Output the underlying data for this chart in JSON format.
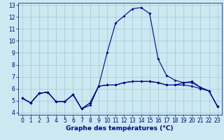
{
  "xlabel": "Graphe des températures (°C)",
  "bg_color": "#cce8f0",
  "line_color": "#00008b",
  "grid_color": "#99ccd9",
  "xlim": [
    -0.5,
    23.5
  ],
  "ylim": [
    3.8,
    13.2
  ],
  "xticks": [
    0,
    1,
    2,
    3,
    4,
    5,
    6,
    7,
    8,
    9,
    10,
    11,
    12,
    13,
    14,
    15,
    16,
    17,
    18,
    19,
    20,
    21,
    22,
    23
  ],
  "yticks": [
    4,
    5,
    6,
    7,
    8,
    9,
    10,
    11,
    12,
    13
  ],
  "line1_x": [
    0,
    1,
    2,
    3,
    4,
    5,
    6,
    7,
    8,
    9,
    10,
    11,
    12,
    13,
    14,
    15,
    16,
    17,
    18,
    19,
    20,
    21,
    22,
    23
  ],
  "line1_y": [
    5.2,
    4.8,
    5.6,
    5.7,
    4.9,
    4.9,
    5.5,
    4.3,
    4.6,
    6.2,
    6.3,
    6.3,
    6.5,
    6.6,
    6.6,
    6.6,
    6.5,
    6.3,
    6.3,
    6.3,
    6.2,
    6.0,
    5.8,
    4.5
  ],
  "line2_x": [
    0,
    1,
    2,
    3,
    4,
    5,
    6,
    7,
    8,
    9,
    10,
    11,
    12,
    13,
    14,
    15,
    16,
    17,
    18,
    19,
    20,
    21,
    22,
    23
  ],
  "line2_y": [
    5.2,
    4.8,
    5.6,
    5.7,
    4.9,
    4.9,
    5.5,
    4.3,
    4.8,
    6.2,
    9.0,
    11.5,
    12.1,
    12.7,
    12.8,
    12.3,
    8.5,
    7.1,
    6.7,
    6.5,
    6.5,
    6.1,
    5.8,
    4.5
  ],
  "line3_x": [
    0,
    1,
    2,
    3,
    4,
    5,
    6,
    7,
    8,
    9,
    10,
    11,
    12,
    13,
    14,
    15,
    16,
    17,
    18,
    19,
    20,
    21,
    22,
    23
  ],
  "line3_y": [
    5.2,
    4.8,
    5.6,
    5.7,
    4.9,
    4.9,
    5.5,
    4.3,
    4.8,
    6.2,
    6.3,
    6.3,
    6.5,
    6.6,
    6.6,
    6.6,
    6.5,
    6.3,
    6.3,
    6.5,
    6.6,
    6.1,
    5.8,
    4.5
  ],
  "marker_size": 2.0,
  "line_width": 0.8,
  "xlabel_fontsize": 6.5,
  "tick_fontsize": 5.5
}
